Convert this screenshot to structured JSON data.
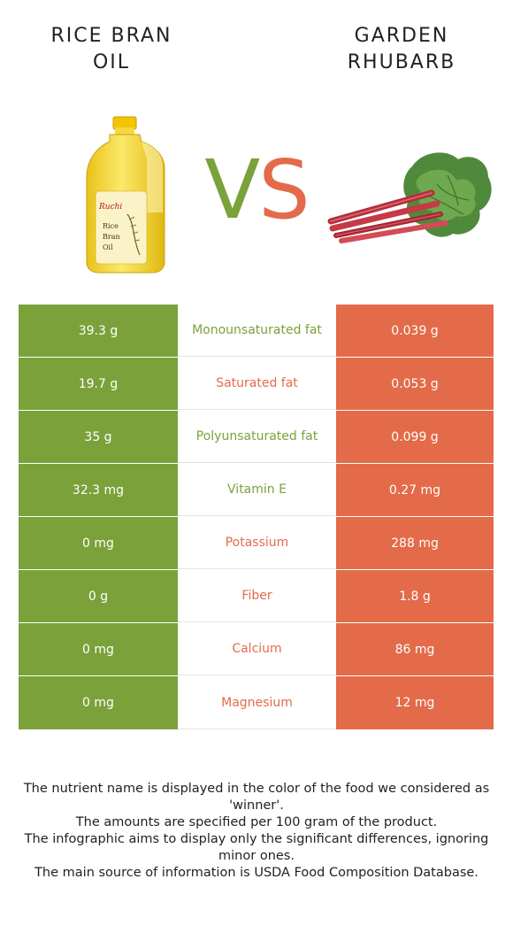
{
  "header": {
    "left_food": "RICE BRAN\nOIL",
    "right_food": "GARDEN\nRHUBARB",
    "vs_v": "V",
    "vs_s": "S"
  },
  "colors": {
    "winner_left": "#7ba13a",
    "winner_right": "#e36b4a"
  },
  "rows": [
    {
      "left": "39.3 g",
      "nutrient": "Monounsaturated fat",
      "right": "0.039 g",
      "winner": "left"
    },
    {
      "left": "19.7 g",
      "nutrient": "Saturated fat",
      "right": "0.053 g",
      "winner": "right"
    },
    {
      "left": "35 g",
      "nutrient": "Polyunsaturated fat",
      "right": "0.099 g",
      "winner": "left"
    },
    {
      "left": "32.3 mg",
      "nutrient": "Vitamin E",
      "right": "0.27 mg",
      "winner": "left"
    },
    {
      "left": "0 mg",
      "nutrient": "Potassium",
      "right": "288 mg",
      "winner": "right"
    },
    {
      "left": "0 g",
      "nutrient": "Fiber",
      "right": "1.8 g",
      "winner": "right"
    },
    {
      "left": "0 mg",
      "nutrient": "Calcium",
      "right": "86 mg",
      "winner": "right"
    },
    {
      "left": "0 mg",
      "nutrient": "Magnesium",
      "right": "12 mg",
      "winner": "right"
    }
  ],
  "footer": [
    "The nutrient name is displayed in the color of the food we considered as 'winner'.",
    "The amounts are specified per 100 gram of the product.",
    "The infographic aims to display only the significant differences, ignoring minor ones.",
    "The main source of information is USDA Food Composition Database."
  ],
  "images": {
    "left_label": [
      "Rice",
      "Bran",
      "Oil"
    ]
  }
}
